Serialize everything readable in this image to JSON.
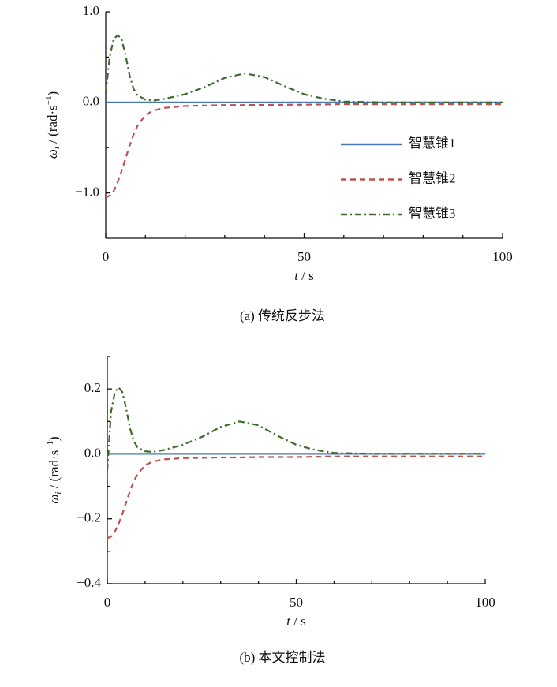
{
  "chart_data": [
    {
      "type": "line",
      "caption": "(a)  传统反步法",
      "xlabel": {
        "symbol": "t",
        "unit": " / s"
      },
      "ylabel": {
        "symbol": "ω",
        "subscript": "i",
        "unit": " / (rad·s",
        "exponent": "−1",
        "close": ")"
      },
      "xlim": [
        0,
        100
      ],
      "xticks": [
        0,
        50,
        100
      ],
      "xminorticks": [
        10,
        20,
        30,
        40,
        60,
        70,
        80,
        90
      ],
      "ylim": [
        -1.5,
        1.0
      ],
      "yticks": [
        {
          "value": -1,
          "label": "−1.0"
        },
        {
          "value": 0,
          "label": "0.0"
        },
        {
          "value": 1,
          "label": "1.0"
        }
      ],
      "yminorticks": [
        -0.5,
        0.5
      ],
      "grid": false,
      "legend": "lower right",
      "x": [
        0,
        1,
        2,
        3,
        4,
        5,
        6,
        7,
        8,
        10,
        12,
        15,
        20,
        25,
        30,
        35,
        40,
        45,
        50,
        55,
        60,
        70,
        80,
        90,
        100
      ],
      "series": [
        {
          "name": "智慧锥1",
          "color": "#4a7ab5",
          "dash": "solid",
          "values": [
            0,
            0,
            0,
            0,
            0,
            0,
            0,
            0,
            0,
            0,
            0,
            0,
            0,
            0,
            0,
            0,
            0,
            0,
            0,
            0,
            0,
            0,
            0,
            0,
            0
          ]
        },
        {
          "name": "智慧锥2",
          "color": "#c0504d",
          "dash": "dashed",
          "values": [
            -1.05,
            -1.03,
            -0.98,
            -0.88,
            -0.76,
            -0.62,
            -0.48,
            -0.36,
            -0.26,
            -0.14,
            -0.09,
            -0.06,
            -0.04,
            -0.035,
            -0.03,
            -0.03,
            -0.028,
            -0.026,
            -0.025,
            -0.023,
            -0.02,
            -0.02,
            -0.02,
            -0.02,
            -0.02
          ]
        },
        {
          "name": "智慧锥3",
          "color": "#3d6b2c",
          "dash": "dashdot",
          "values": [
            0.1,
            0.5,
            0.7,
            0.74,
            0.7,
            0.52,
            0.3,
            0.15,
            0.08,
            0.03,
            0.02,
            0.04,
            0.09,
            0.17,
            0.27,
            0.32,
            0.28,
            0.18,
            0.09,
            0.04,
            0.01,
            0,
            0,
            0,
            0
          ]
        }
      ]
    },
    {
      "type": "line",
      "caption": "(b)  本文控制法",
      "xlabel": {
        "symbol": "t",
        "unit": " / s"
      },
      "ylabel": {
        "symbol": "ω",
        "subscript": "i",
        "unit": " / (rad·s",
        "exponent": "−1",
        "close": ")"
      },
      "xlim": [
        0,
        100
      ],
      "xticks": [
        0,
        50,
        100
      ],
      "xminorticks": [
        10,
        20,
        30,
        40,
        60,
        70,
        80,
        90
      ],
      "ylim": [
        -0.4,
        0.3
      ],
      "yticks": [
        {
          "value": -0.4,
          "label": "−0.4"
        },
        {
          "value": -0.2,
          "label": "−0.2"
        },
        {
          "value": 0,
          "label": "0.0"
        },
        {
          "value": 0.2,
          "label": "0.2"
        }
      ],
      "yminorticks": [
        -0.3,
        -0.1,
        0.1,
        0.3
      ],
      "grid": false,
      "legend": "none",
      "x": [
        0,
        1,
        2,
        3,
        4,
        5,
        6,
        7,
        8,
        10,
        12,
        15,
        20,
        25,
        30,
        35,
        40,
        45,
        50,
        55,
        60,
        70,
        80,
        90,
        100
      ],
      "series": [
        {
          "color": "#4a7ab5",
          "dash": "solid",
          "values": [
            0,
            0,
            0,
            0,
            0,
            0,
            0,
            0,
            0,
            0,
            0,
            0,
            0,
            0,
            0,
            0,
            0,
            0,
            0,
            0,
            0,
            0,
            0,
            0,
            0
          ]
        },
        {
          "color": "#c0504d",
          "dash": "dashed",
          "values": [
            -0.26,
            -0.255,
            -0.24,
            -0.215,
            -0.185,
            -0.15,
            -0.115,
            -0.085,
            -0.063,
            -0.035,
            -0.024,
            -0.017,
            -0.013,
            -0.012,
            -0.011,
            -0.011,
            -0.01,
            -0.01,
            -0.01,
            -0.009,
            -0.008,
            -0.008,
            -0.008,
            -0.008,
            -0.008
          ]
        },
        {
          "color": "#3d6b2c",
          "dash": "dashdot",
          "values": [
            -0.05,
            0.13,
            0.19,
            0.205,
            0.19,
            0.14,
            0.08,
            0.04,
            0.02,
            0.008,
            0.006,
            0.012,
            0.028,
            0.052,
            0.083,
            0.1,
            0.088,
            0.056,
            0.028,
            0.012,
            0.003,
            0,
            0,
            0,
            0
          ]
        }
      ]
    }
  ]
}
